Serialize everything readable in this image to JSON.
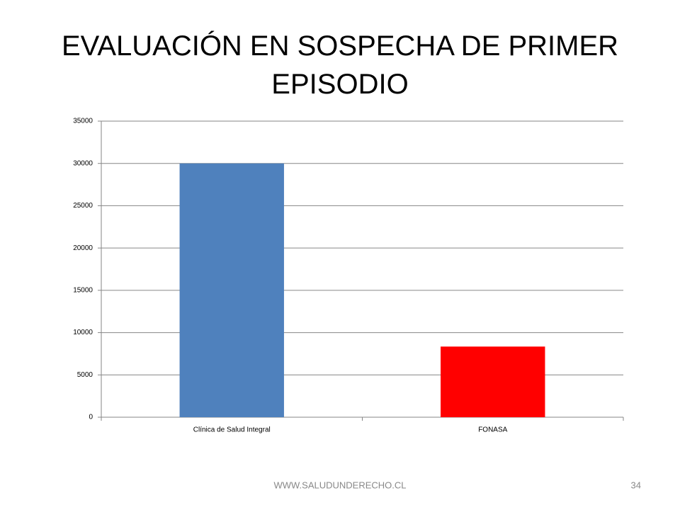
{
  "chart_data": {
    "type": "bar",
    "title": "EVALUACIÓN EN SOSPECHA DE PRIMER EPISODIO",
    "categories": [
      "Clínica de Salud Integral",
      "FONASA"
    ],
    "values": [
      30000,
      8350
    ],
    "colors": [
      "#4f81bd",
      "#ff0000"
    ],
    "ylim": [
      0,
      35000
    ],
    "yticks": [
      0,
      5000,
      10000,
      15000,
      20000,
      25000,
      30000,
      35000
    ],
    "grid": true
  },
  "footer": {
    "url": "WWW.SALUDUNDERECHO.CL",
    "page": "34"
  }
}
